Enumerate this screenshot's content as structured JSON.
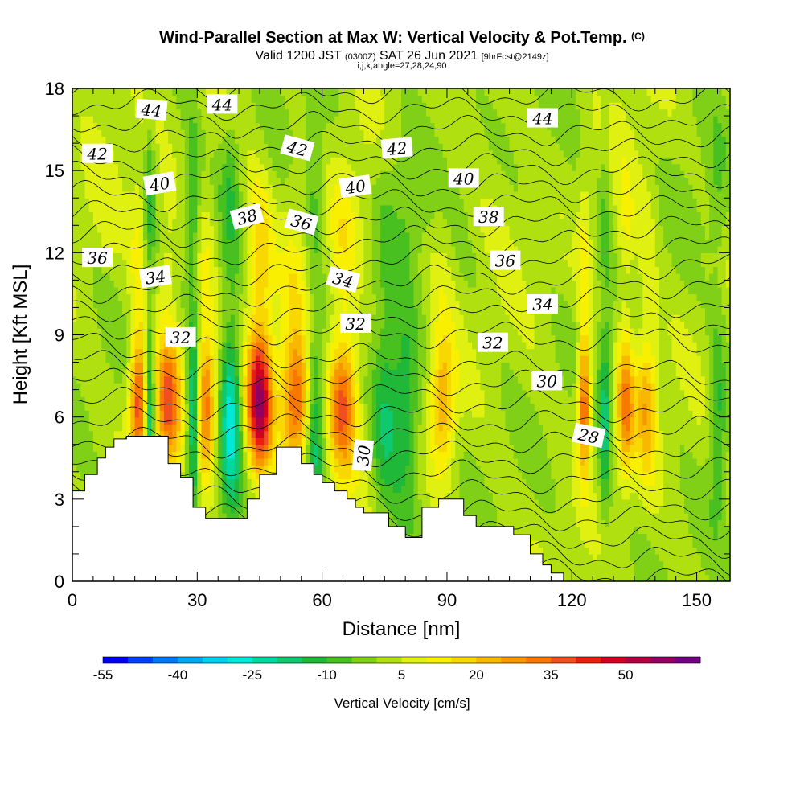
{
  "header": {
    "title": "Wind-Parallel Section at Max W: Vertical Velocity & Pot.Temp.",
    "title_tag": "(C)",
    "valid_prefix": "Valid 1200 JST",
    "valid_zulu": "(0300Z)",
    "valid_date": "SAT 26 Jun 2021",
    "forecast_info": "[9hrFcst@2149z]",
    "indices": "i,j,k,angle=27,28,24,90"
  },
  "chart_data": {
    "type": "heatmap",
    "xlabel": "Distance [nm]",
    "ylabel": "Height [Kft MSL]",
    "xlim": [
      0,
      158
    ],
    "ylim": [
      0,
      18
    ],
    "x_ticks": [
      0,
      30,
      60,
      90,
      120,
      150
    ],
    "y_ticks": [
      0,
      3,
      6,
      9,
      12,
      15,
      18
    ],
    "colorbar": {
      "title": "Vertical Velocity [cm/s]",
      "min": -55,
      "max": 60,
      "step": 5,
      "tick_values": [
        -55,
        -40,
        -25,
        -10,
        5,
        20,
        35,
        50
      ],
      "colors": [
        "#0000f0",
        "#0040f8",
        "#0078f8",
        "#00a8f0",
        "#00d0f0",
        "#00e8d8",
        "#00d8a0",
        "#10c870",
        "#20b838",
        "#48c020",
        "#80d018",
        "#b0e010",
        "#e0f010",
        "#f8f000",
        "#f8d800",
        "#f8b800",
        "#f89800",
        "#f87800",
        "#f05020",
        "#e82010",
        "#d00020",
        "#b00040",
        "#900060",
        "#700080"
      ]
    },
    "theta_labels": [
      {
        "value": "44",
        "x": 19,
        "y": 17.2,
        "angle": 5
      },
      {
        "value": "44",
        "x": 36,
        "y": 17.4,
        "angle": 0
      },
      {
        "value": "44",
        "x": 113,
        "y": 16.9,
        "angle": 0
      },
      {
        "value": "42",
        "x": 6,
        "y": 15.6,
        "angle": 0
      },
      {
        "value": "42",
        "x": 54,
        "y": 15.8,
        "angle": 15
      },
      {
        "value": "42",
        "x": 78,
        "y": 15.8,
        "angle": -5
      },
      {
        "value": "40",
        "x": 21,
        "y": 14.5,
        "angle": -10
      },
      {
        "value": "40",
        "x": 68,
        "y": 14.4,
        "angle": -8
      },
      {
        "value": "40",
        "x": 94,
        "y": 14.7,
        "angle": 0
      },
      {
        "value": "38",
        "x": 42,
        "y": 13.3,
        "angle": -15
      },
      {
        "value": "38",
        "x": 100,
        "y": 13.3,
        "angle": 0
      },
      {
        "value": "36",
        "x": 6,
        "y": 11.8,
        "angle": 0
      },
      {
        "value": "36",
        "x": 55,
        "y": 13.1,
        "angle": 15
      },
      {
        "value": "36",
        "x": 104,
        "y": 11.7,
        "angle": 0
      },
      {
        "value": "34",
        "x": 20,
        "y": 11.1,
        "angle": -8
      },
      {
        "value": "34",
        "x": 65,
        "y": 11.0,
        "angle": 15
      },
      {
        "value": "34",
        "x": 113,
        "y": 10.1,
        "angle": 0
      },
      {
        "value": "32",
        "x": 26,
        "y": 8.9,
        "angle": 0
      },
      {
        "value": "32",
        "x": 68,
        "y": 9.4,
        "angle": 0
      },
      {
        "value": "32",
        "x": 101,
        "y": 8.7,
        "angle": 0
      },
      {
        "value": "30",
        "x": 70,
        "y": 4.6,
        "angle": -85
      },
      {
        "value": "30",
        "x": 114,
        "y": 7.3,
        "angle": 0
      },
      {
        "value": "28",
        "x": 124,
        "y": 5.3,
        "angle": 12
      }
    ],
    "terrain": [
      [
        0,
        3.3
      ],
      [
        3,
        3.3
      ],
      [
        3,
        3.9
      ],
      [
        6,
        3.9
      ],
      [
        6,
        4.5
      ],
      [
        8,
        4.5
      ],
      [
        8,
        4.9
      ],
      [
        10,
        4.9
      ],
      [
        10,
        5.2
      ],
      [
        13,
        5.2
      ],
      [
        13,
        5.3
      ],
      [
        23,
        5.3
      ],
      [
        23,
        4.3
      ],
      [
        26,
        4.3
      ],
      [
        26,
        3.8
      ],
      [
        29,
        3.8
      ],
      [
        29,
        2.7
      ],
      [
        32,
        2.7
      ],
      [
        32,
        2.3
      ],
      [
        42,
        2.3
      ],
      [
        42,
        3.0
      ],
      [
        45,
        3.0
      ],
      [
        45,
        3.9
      ],
      [
        49,
        3.9
      ],
      [
        49,
        4.9
      ],
      [
        55,
        4.9
      ],
      [
        55,
        4.3
      ],
      [
        58,
        4.3
      ],
      [
        58,
        3.9
      ],
      [
        60,
        3.9
      ],
      [
        60,
        3.6
      ],
      [
        63,
        3.6
      ],
      [
        63,
        3.3
      ],
      [
        66,
        3.3
      ],
      [
        66,
        3.0
      ],
      [
        68,
        3.0
      ],
      [
        68,
        2.7
      ],
      [
        70,
        2.7
      ],
      [
        70,
        2.5
      ],
      [
        76,
        2.5
      ],
      [
        76,
        2.0
      ],
      [
        80,
        2.0
      ],
      [
        80,
        1.6
      ],
      [
        84,
        1.6
      ],
      [
        84,
        2.7
      ],
      [
        88,
        2.7
      ],
      [
        88,
        3.0
      ],
      [
        94,
        3.0
      ],
      [
        94,
        2.4
      ],
      [
        97,
        2.4
      ],
      [
        97,
        2.0
      ],
      [
        106,
        2.0
      ],
      [
        106,
        1.7
      ],
      [
        110,
        1.7
      ],
      [
        110,
        1.0
      ],
      [
        113,
        1.0
      ],
      [
        113,
        0.6
      ],
      [
        115,
        0.6
      ],
      [
        115,
        0.3
      ],
      [
        118,
        0.3
      ],
      [
        118,
        0
      ],
      [
        0,
        0
      ]
    ],
    "updrafts": [
      {
        "x": 16,
        "w": 2.2,
        "amp": 38
      },
      {
        "x": 23,
        "w": 3.0,
        "amp": 34
      },
      {
        "x": 32,
        "w": 2.4,
        "amp": 30
      },
      {
        "x": 45,
        "w": 3.0,
        "amp": 55
      },
      {
        "x": 54,
        "w": 4.0,
        "amp": 38
      },
      {
        "x": 65,
        "w": 3.5,
        "amp": 36
      },
      {
        "x": 89,
        "w": 3.0,
        "amp": 22
      },
      {
        "x": 123,
        "w": 1.5,
        "amp": 36
      },
      {
        "x": 133,
        "w": 2.0,
        "amp": 28
      },
      {
        "x": 138,
        "w": 2.5,
        "amp": 22
      }
    ],
    "downdrafts": [
      {
        "x": 18.5,
        "w": 1.2,
        "amp": -30
      },
      {
        "x": 29,
        "w": 1.5,
        "amp": -30
      },
      {
        "x": 38,
        "w": 2.5,
        "amp": -30
      },
      {
        "x": 58,
        "w": 2.5,
        "amp": -25
      },
      {
        "x": 75,
        "w": 3.0,
        "amp": -16
      },
      {
        "x": 80,
        "w": 3.5,
        "amp": -18
      },
      {
        "x": 128,
        "w": 1.5,
        "amp": -20
      },
      {
        "x": 155,
        "w": 2.0,
        "amp": -14
      }
    ]
  }
}
